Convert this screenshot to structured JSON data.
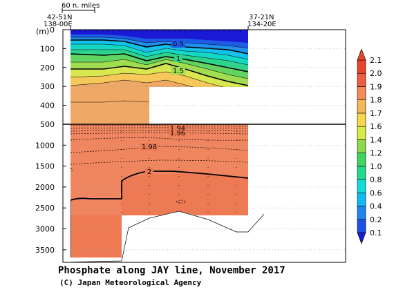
{
  "chart_data": {
    "type": "contour",
    "title": "Phosphate along JAY line, November 2017",
    "credit": "(C) Japan Meteorological Agency",
    "ylabel": "(m)",
    "scale_bar_label": "60 n. miles",
    "endpoints": {
      "left": [
        "42-51N",
        "138-00E"
      ],
      "right": [
        "37-21N",
        "134-20E"
      ]
    },
    "upper_depth_ticks": [
      0,
      100,
      200,
      300,
      400,
      500
    ],
    "lower_depth_ticks": [
      1000,
      1500,
      2000,
      2500,
      3000,
      3500
    ],
    "colorbar": {
      "levels": [
        0.1,
        0.2,
        0.4,
        0.6,
        0.8,
        1.0,
        1.2,
        1.4,
        1.6,
        1.7,
        1.8,
        1.9,
        2.0,
        2.1
      ],
      "colors": [
        "#1a1ad6",
        "#1e4fe6",
        "#1f86f0",
        "#10b9f2",
        "#12dcd8",
        "#22d98e",
        "#40d460",
        "#8ed84e",
        "#d6ea4a",
        "#f6d84a",
        "#f6b65a",
        "#f48a56",
        "#ec5e3c",
        "#e8442c"
      ]
    },
    "contour_labels": [
      "0.5",
      "1",
      "1.5",
      "1.94",
      "1.96",
      "1.98",
      "2"
    ]
  }
}
